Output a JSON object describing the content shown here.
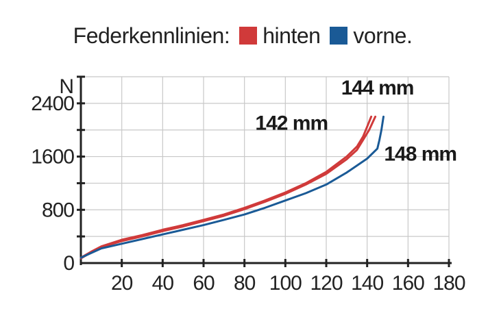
{
  "chart_data": {
    "type": "line",
    "title": "",
    "legend": {
      "label": "Federkennlinien:",
      "placement": "top-center",
      "entries": [
        {
          "name": "hinten",
          "color": "#d03a3a"
        },
        {
          "name": "vorne.",
          "color": "#1a5a96"
        }
      ]
    },
    "xlabel": "",
    "ylabel": "N",
    "xlim": [
      0,
      180
    ],
    "ylim": [
      0,
      2800
    ],
    "xticks": [
      20,
      40,
      60,
      80,
      100,
      120,
      140,
      160,
      180
    ],
    "yticks": [
      0,
      800,
      1600,
      2400
    ],
    "yticks_minor": [
      400,
      1200,
      2000,
      2800
    ],
    "grid": true,
    "series": [
      {
        "name": "142 mm",
        "color": "#d03a3a",
        "group": "hinten",
        "x": [
          0,
          5,
          10,
          20,
          30,
          40,
          50,
          60,
          70,
          80,
          90,
          100,
          110,
          120,
          130,
          135,
          138,
          140,
          142
        ],
        "y": [
          80,
          170,
          250,
          350,
          420,
          500,
          570,
          650,
          730,
          830,
          940,
          1060,
          1200,
          1370,
          1600,
          1750,
          1900,
          2050,
          2200
        ]
      },
      {
        "name": "144 mm",
        "color": "#d03a3a",
        "group": "hinten",
        "x": [
          0,
          5,
          10,
          20,
          30,
          40,
          50,
          60,
          70,
          80,
          90,
          100,
          110,
          120,
          130,
          135,
          138,
          141,
          144
        ],
        "y": [
          70,
          160,
          240,
          330,
          400,
          480,
          550,
          630,
          710,
          810,
          920,
          1040,
          1180,
          1340,
          1560,
          1700,
          1850,
          2000,
          2200
        ]
      },
      {
        "name": "148 mm",
        "color": "#1a5a96",
        "group": "vorne.",
        "x": [
          0,
          5,
          10,
          20,
          30,
          40,
          50,
          60,
          70,
          80,
          90,
          100,
          110,
          120,
          130,
          140,
          145,
          146,
          147,
          148
        ],
        "y": [
          80,
          150,
          220,
          290,
          360,
          430,
          500,
          570,
          650,
          730,
          830,
          940,
          1050,
          1180,
          1360,
          1570,
          1720,
          1850,
          2000,
          2200
        ]
      }
    ],
    "annotations": [
      {
        "text": "144 mm",
        "x": 145,
        "y": 2530
      },
      {
        "text": "142 mm",
        "x": 103,
        "y": 2000
      },
      {
        "text": "148 mm",
        "x": 166,
        "y": 1540
      }
    ]
  }
}
